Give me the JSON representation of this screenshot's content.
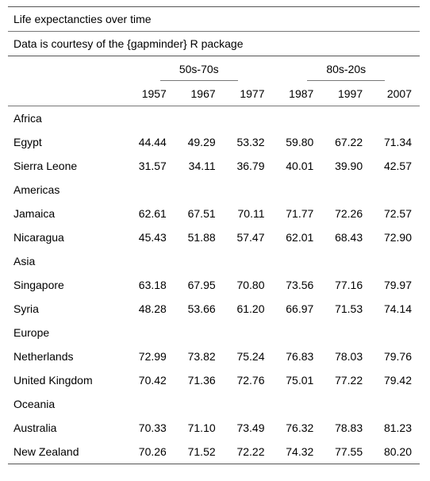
{
  "title": "Life expectancties over time",
  "subtitle": "Data is courtesy of the {gapminder} R package",
  "spanners": [
    "50s-70s",
    "80s-20s"
  ],
  "years": [
    "1957",
    "1967",
    "1977",
    "1987",
    "1997",
    "2007"
  ],
  "groups": [
    {
      "name": "Africa",
      "rows": [
        {
          "country": "Egypt",
          "values": [
            "44.44",
            "49.29",
            "53.32",
            "59.80",
            "67.22",
            "71.34"
          ]
        },
        {
          "country": "Sierra Leone",
          "values": [
            "31.57",
            "34.11",
            "36.79",
            "40.01",
            "39.90",
            "42.57"
          ]
        }
      ]
    },
    {
      "name": "Americas",
      "rows": [
        {
          "country": "Jamaica",
          "values": [
            "62.61",
            "67.51",
            "70.11",
            "71.77",
            "72.26",
            "72.57"
          ]
        },
        {
          "country": "Nicaragua",
          "values": [
            "45.43",
            "51.88",
            "57.47",
            "62.01",
            "68.43",
            "72.90"
          ]
        }
      ]
    },
    {
      "name": "Asia",
      "rows": [
        {
          "country": "Singapore",
          "values": [
            "63.18",
            "67.95",
            "70.80",
            "73.56",
            "77.16",
            "79.97"
          ]
        },
        {
          "country": "Syria",
          "values": [
            "48.28",
            "53.66",
            "61.20",
            "66.97",
            "71.53",
            "74.14"
          ]
        }
      ]
    },
    {
      "name": "Europe",
      "rows": [
        {
          "country": "Netherlands",
          "values": [
            "72.99",
            "73.82",
            "75.24",
            "76.83",
            "78.03",
            "79.76"
          ]
        },
        {
          "country": "United Kingdom",
          "values": [
            "70.42",
            "71.36",
            "72.76",
            "75.01",
            "77.22",
            "79.42"
          ]
        }
      ]
    },
    {
      "name": "Oceania",
      "rows": [
        {
          "country": "Australia",
          "values": [
            "70.33",
            "71.10",
            "73.49",
            "76.32",
            "78.83",
            "81.23"
          ]
        },
        {
          "country": "New Zealand",
          "values": [
            "70.26",
            "71.52",
            "72.22",
            "74.32",
            "77.55",
            "80.20"
          ]
        }
      ]
    }
  ]
}
